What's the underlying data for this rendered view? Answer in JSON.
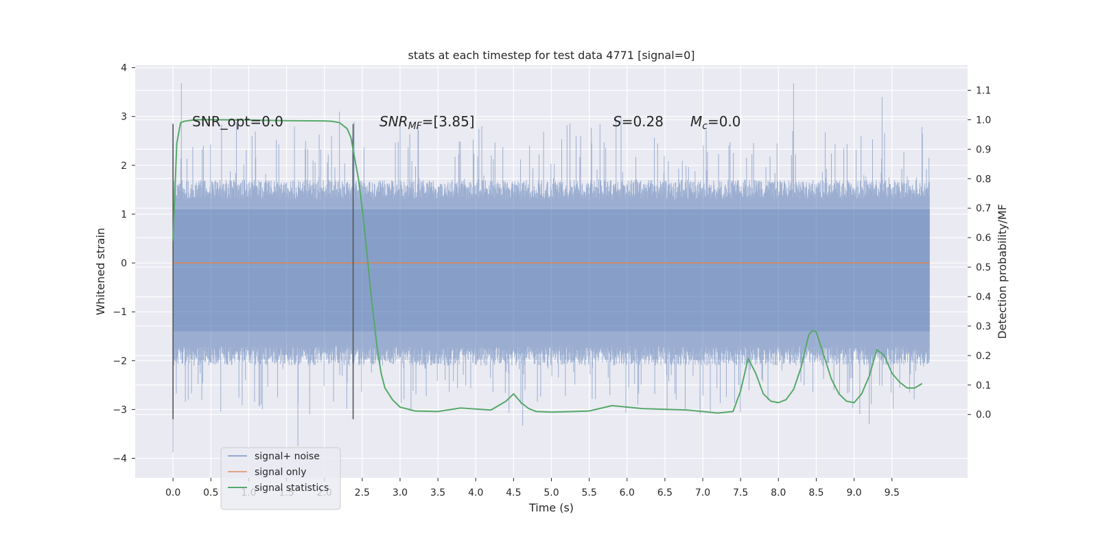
{
  "chart_data": {
    "type": "line",
    "title": "stats at each timestep for test data 4771 [signal=0]",
    "xlabel": "Time (s)",
    "ylabel": "Whitened strain",
    "y2label": "Detection probability/MF",
    "xlim": [
      -0.5,
      10.5
    ],
    "ylim": [
      -4.4,
      4.05
    ],
    "y2lim": [
      -0.215,
      1.185
    ],
    "x_ticks": [
      0.0,
      0.5,
      1.0,
      1.5,
      2.0,
      2.5,
      3.0,
      3.5,
      4.0,
      4.5,
      5.0,
      5.5,
      6.0,
      6.5,
      7.0,
      7.5,
      8.0,
      8.5,
      9.0,
      9.5
    ],
    "x_tick_labels": [
      "0.0",
      "0.5",
      "1.0",
      "1.5",
      "2.0",
      "2.5",
      "3.0",
      "3.5",
      "4.0",
      "4.5",
      "5.0",
      "5.5",
      "6.0",
      "6.5",
      "7.0",
      "7.5",
      "8.0",
      "8.5",
      "9.0",
      "9.5"
    ],
    "y_ticks": [
      -4,
      -3,
      -2,
      -1,
      0,
      1,
      2,
      3,
      4
    ],
    "y_tick_labels": [
      "−4",
      "−3",
      "−2",
      "−1",
      "0",
      "1",
      "2",
      "3",
      "4"
    ],
    "y2_ticks": [
      0.0,
      0.1,
      0.2,
      0.3,
      0.4,
      0.5,
      0.6,
      0.7,
      0.8,
      0.9,
      1.0,
      1.1
    ],
    "y2_tick_labels": [
      "0.0",
      "0.1",
      "0.2",
      "0.3",
      "0.4",
      "0.5",
      "0.6",
      "0.7",
      "0.8",
      "0.9",
      "1.0",
      "1.1"
    ],
    "grid": true,
    "legend_position": "lower-left",
    "colors": {
      "plot_background": "#eaeaf2",
      "grid": "#ffffff",
      "noise": "#4c72b0",
      "signal_only": "#dd8452",
      "statistics": "#55a868",
      "vlines": "#555555"
    },
    "series": [
      {
        "name": "signal+ noise",
        "axis": "left",
        "style": "dense band",
        "x_range": [
          0.0,
          10.0
        ],
        "envelope_lower": -2.1,
        "envelope_upper": 1.7,
        "inner_band": [
          -1.4,
          1.1
        ],
        "peaks": [
          {
            "x": 0.0,
            "y": -3.88
          },
          {
            "x": 0.11,
            "y": 3.68
          },
          {
            "x": 1.65,
            "y": -3.75
          },
          {
            "x": 2.2,
            "y": 3.1
          },
          {
            "x": 8.2,
            "y": 3.68
          },
          {
            "x": 9.37,
            "y": 3.4
          },
          {
            "x": 4.62,
            "y": -3.33
          },
          {
            "x": 9.2,
            "y": -3.3
          },
          {
            "x": 3.0,
            "y": 2.97
          },
          {
            "x": 5.92,
            "y": 3.0
          }
        ]
      },
      {
        "name": "signal only",
        "axis": "left",
        "x": [
          0.0,
          10.0
        ],
        "y": [
          0.0,
          0.0
        ]
      },
      {
        "name": "signal statistics",
        "axis": "right",
        "x": [
          0.0,
          0.05,
          0.1,
          0.15,
          0.2,
          0.3,
          0.5,
          1.0,
          1.5,
          2.0,
          2.1,
          2.2,
          2.3,
          2.35,
          2.4,
          2.45,
          2.5,
          2.55,
          2.6,
          2.65,
          2.7,
          2.75,
          2.8,
          2.9,
          3.0,
          3.2,
          3.5,
          3.8,
          4.2,
          4.4,
          4.5,
          4.6,
          4.7,
          4.8,
          5.0,
          5.3,
          5.5,
          5.8,
          6.2,
          6.8,
          7.2,
          7.4,
          7.5,
          7.6,
          7.7,
          7.8,
          7.9,
          8.0,
          8.1,
          8.2,
          8.3,
          8.4,
          8.45,
          8.5,
          8.6,
          8.7,
          8.8,
          8.9,
          9.0,
          9.1,
          9.2,
          9.3,
          9.4,
          9.5,
          9.6,
          9.7,
          9.8,
          9.9
        ],
        "y": [
          0.59,
          0.92,
          0.99,
          0.995,
          0.997,
          1.0,
          1.0,
          0.999,
          0.997,
          0.996,
          0.995,
          0.99,
          0.97,
          0.94,
          0.87,
          0.8,
          0.7,
          0.58,
          0.45,
          0.33,
          0.22,
          0.14,
          0.09,
          0.05,
          0.025,
          0.012,
          0.01,
          0.022,
          0.015,
          0.045,
          0.07,
          0.04,
          0.02,
          0.01,
          0.008,
          0.01,
          0.012,
          0.03,
          0.02,
          0.015,
          0.005,
          0.01,
          0.08,
          0.19,
          0.14,
          0.07,
          0.045,
          0.04,
          0.05,
          0.085,
          0.16,
          0.27,
          0.285,
          0.28,
          0.2,
          0.12,
          0.07,
          0.045,
          0.04,
          0.07,
          0.13,
          0.22,
          0.2,
          0.14,
          0.11,
          0.09,
          0.09,
          0.105
        ]
      }
    ],
    "vertical_lines": [
      {
        "x": 0.0,
        "y_range": [
          -3.2,
          2.85
        ]
      },
      {
        "x": 2.38,
        "y_range": [
          -3.2,
          2.85
        ]
      }
    ],
    "annotations": {
      "snr_opt": "SNR_opt=0.0",
      "snr_mf_label": "SNR",
      "snr_mf_sub": "MF",
      "snr_mf_value": "=[3.85]",
      "s_label": "S",
      "s_value": "=0.28",
      "mc_label": "M",
      "mc_sub": "c",
      "mc_value": "=0.0"
    },
    "legend": [
      "signal+ noise",
      "signal only",
      "signal statistics"
    ]
  }
}
